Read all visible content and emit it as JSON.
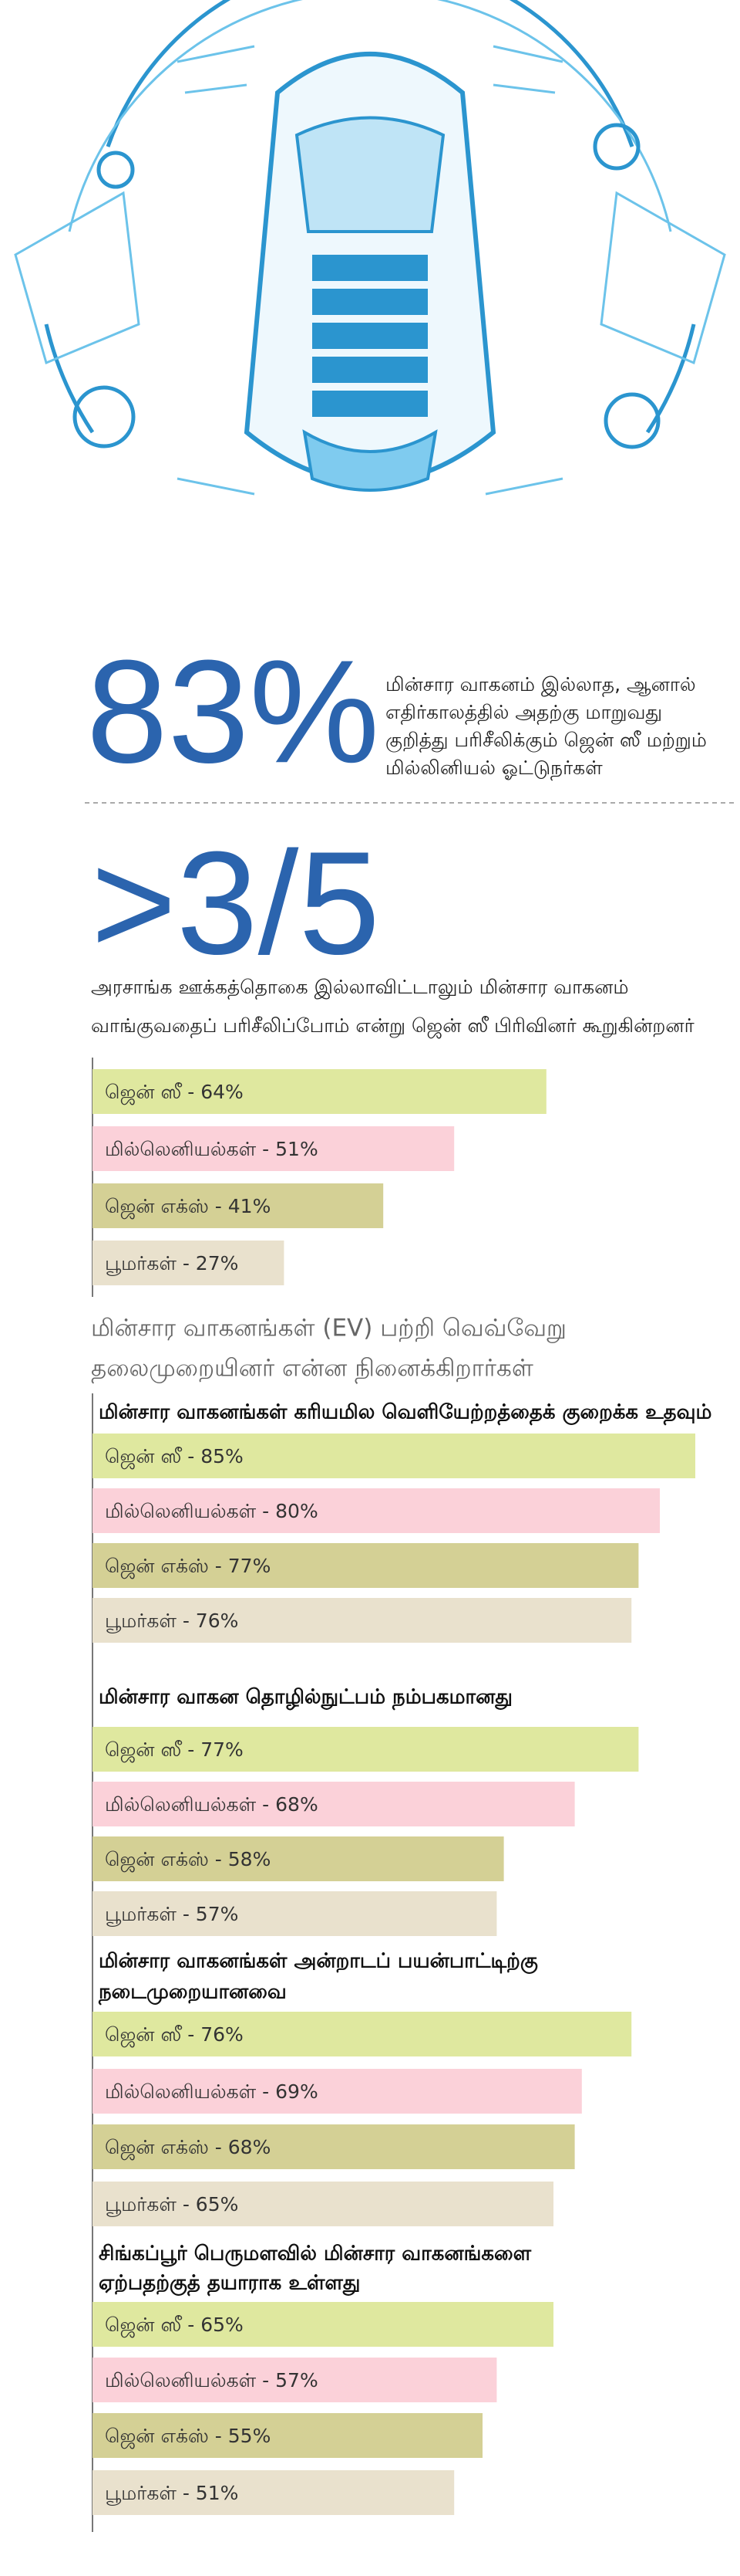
{
  "stats": [
    {
      "value": "83%",
      "lines": [
        "மின்சார வாகனம் இல்லாத, ஆனால்",
        "எதிர்காலத்தில் அதற்கு மாறுவது",
        "குறித்து பரிசீலிக்கும் ஜென் ஸீ மற்றும்",
        "மில்லினியல் ஓட்டுநர்கள்"
      ]
    },
    {
      "value": ">3/5",
      "lines": [
        "அரசாங்க ஊக்கத்தொகை இல்லாவிட்டாலும் மின்சார வாகனம்",
        "வாங்குவதைப் பரிசீலிப்போம் என்று ஜென் ஸீ பிரிவினர் கூறுகின்றனர்"
      ]
    }
  ],
  "section_title": [
    "மின்சார வாகனங்கள் (EV) பற்றி வெவ்வேறு",
    "தலைமுறையினர் என்ன நினைக்கிறார்கள்"
  ],
  "colors": [
    "#dfe89f",
    "#fbd1d9",
    "#d4d095",
    "#e9e1cd"
  ],
  "chart_data": [
    {
      "type": "bar",
      "title": [],
      "values": [
        64,
        51,
        41,
        27
      ],
      "value_labels": [
        "ஜென் ஸீ - 64%",
        "மில்லெனியல்கள் - 51%",
        "ஜென் எக்ஸ் - 41%",
        "பூமர்கள் - 27%"
      ]
    },
    {
      "type": "bar",
      "title": [
        "மின்சார வாகனங்கள் கரியமில வெளியேற்றத்தைக் குறைக்க உதவும்"
      ],
      "values": [
        85,
        80,
        77,
        76
      ],
      "value_labels": [
        "ஜென் ஸீ - 85%",
        "மில்லெனியல்கள் - 80%",
        "ஜென் எக்ஸ் - 77%",
        "பூமர்கள் - 76%"
      ]
    },
    {
      "type": "bar",
      "title": [
        "மின்சார வாகன தொழில்நுட்பம் நம்பகமானது"
      ],
      "values": [
        77,
        68,
        58,
        57
      ],
      "value_labels": [
        "ஜென் ஸீ - 77%",
        "மில்லெனியல்கள் - 68%",
        "ஜென் எக்ஸ் - 58%",
        "பூமர்கள் - 57%"
      ]
    },
    {
      "type": "bar",
      "title": [
        "மின்சார வாகனங்கள் அன்றாடப் பயன்பாட்டிற்கு",
        "நடைமுறையானவை"
      ],
      "values": [
        76,
        69,
        68,
        65
      ],
      "value_labels": [
        "ஜென் ஸீ - 76%",
        "மில்லெனியல்கள் - 69%",
        "ஜென் எக்ஸ் - 68%",
        "பூமர்கள் - 65%"
      ]
    },
    {
      "type": "bar",
      "title": [
        "சிங்கப்பூர் பெருமளவில் மின்சார வாகனங்களை",
        "ஏற்பதற்குத் தயாராக உள்ளது"
      ],
      "values": [
        65,
        57,
        55,
        51
      ],
      "value_labels": [
        "ஜென் ஸீ - 65%",
        "மில்லெனியல்கள் - 57%",
        "ஜென் எக்ஸ் - 55%",
        "பூமர்கள் - 51%"
      ]
    }
  ]
}
